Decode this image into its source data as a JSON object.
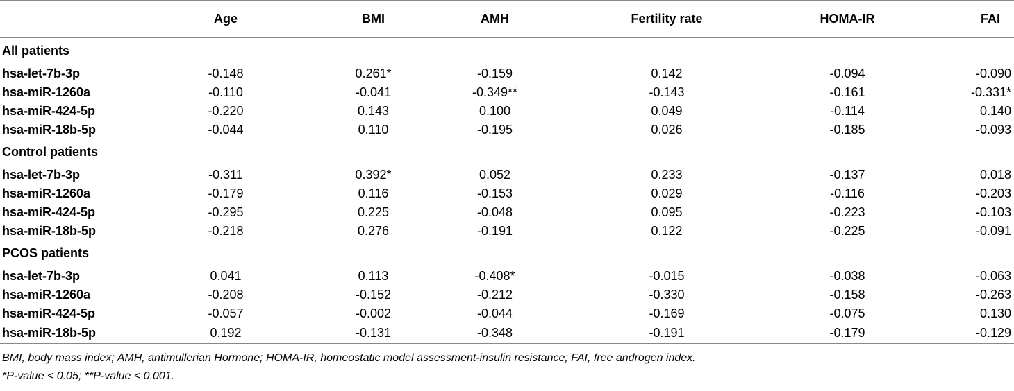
{
  "table": {
    "columns": [
      "",
      "Age",
      "BMI",
      "AMH",
      "Fertility rate",
      "HOMA-IR",
      "FAI"
    ],
    "groups": [
      {
        "label": "All patients",
        "rows": [
          {
            "name": "hsa-let-7b-3p",
            "values": [
              "-0.148",
              "0.261*",
              "-0.159",
              "0.142",
              "-0.094",
              "-0.090"
            ]
          },
          {
            "name": "hsa-miR-1260a",
            "values": [
              "-0.110",
              "-0.041",
              "-0.349**",
              "-0.143",
              "-0.161",
              "-0.331*"
            ]
          },
          {
            "name": "hsa-miR-424-5p",
            "values": [
              "-0.220",
              "0.143",
              "0.100",
              "0.049",
              "-0.114",
              "0.140"
            ]
          },
          {
            "name": "hsa-miR-18b-5p",
            "values": [
              "-0.044",
              "0.110",
              "-0.195",
              "0.026",
              "-0.185",
              "-0.093"
            ]
          }
        ]
      },
      {
        "label": "Control patients",
        "rows": [
          {
            "name": "hsa-let-7b-3p",
            "values": [
              "-0.311",
              "0.392*",
              "0.052",
              "0.233",
              "-0.137",
              "0.018"
            ]
          },
          {
            "name": "hsa-miR-1260a",
            "values": [
              "-0.179",
              "0.116",
              "-0.153",
              "0.029",
              "-0.116",
              "-0.203"
            ]
          },
          {
            "name": "hsa-miR-424-5p",
            "values": [
              "-0.295",
              "0.225",
              "-0.048",
              "0.095",
              "-0.223",
              "-0.103"
            ]
          },
          {
            "name": "hsa-miR-18b-5p",
            "values": [
              "-0.218",
              "0.276",
              "-0.191",
              "0.122",
              "-0.225",
              "-0.091"
            ]
          }
        ]
      },
      {
        "label": "PCOS patients",
        "rows": [
          {
            "name": "hsa-let-7b-3p",
            "values": [
              "0.041",
              "0.113",
              "-0.408*",
              "-0.015",
              "-0.038",
              "-0.063"
            ]
          },
          {
            "name": "hsa-miR-1260a",
            "values": [
              "-0.208",
              "-0.152",
              "-0.212",
              "-0.330",
              "-0.158",
              "-0.263"
            ]
          },
          {
            "name": "hsa-miR-424-5p",
            "values": [
              "-0.057",
              "-0.002",
              "-0.044",
              "-0.169",
              "-0.075",
              "0.130"
            ]
          },
          {
            "name": "hsa-miR-18b-5p",
            "values": [
              "0.192",
              "-0.131",
              "-0.348",
              "-0.191",
              "-0.179",
              "-0.129"
            ]
          }
        ]
      }
    ]
  },
  "footnotes": {
    "abbreviations": "BMI, body mass index; AMH, antimullerian Hormone; HOMA-IR, homeostatic model assessment-insulin resistance; FAI, free androgen index.",
    "significance": "*P-value < 0.05; **P-value < 0.001."
  }
}
